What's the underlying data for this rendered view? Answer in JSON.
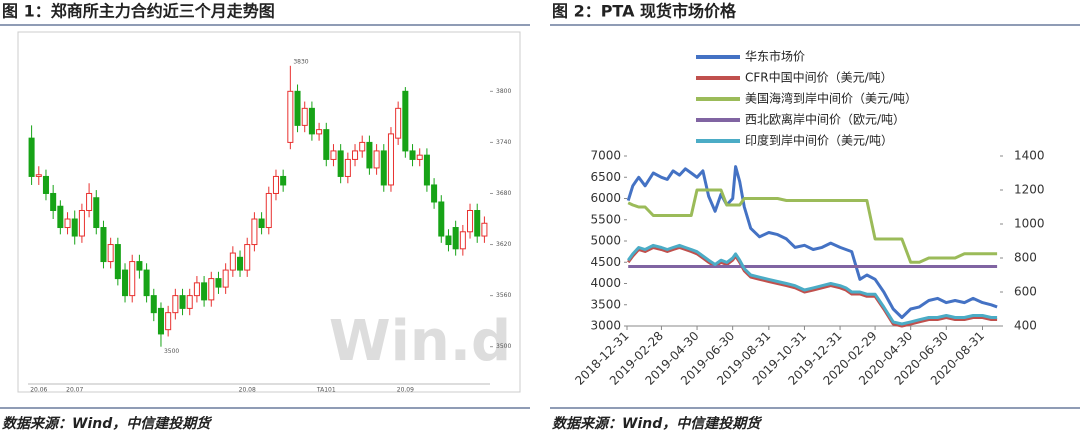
{
  "chart_data": [
    {
      "type": "candlestick",
      "title": "图 1：郑商所主力合约近三个月走势图",
      "source": "数据来源：Wind，中信建投期货",
      "watermark": "Win.d",
      "categories": [
        null,
        "20.06",
        null,
        null,
        null,
        null,
        "20.07",
        null,
        null,
        null,
        null,
        null,
        null,
        null,
        null,
        null,
        null,
        null,
        null,
        null,
        null,
        null,
        null,
        null,
        null,
        null,
        null,
        null,
        null,
        null,
        "20.08",
        null,
        null,
        null,
        null,
        null,
        null,
        null,
        null,
        null,
        null,
        "TA101",
        null,
        null,
        null,
        null,
        null,
        null,
        null,
        null,
        null,
        null,
        "20.09",
        null,
        null,
        null,
        null,
        null,
        null,
        null,
        null,
        null,
        null,
        null
      ],
      "open": [
        3745,
        3700,
        3700,
        3680,
        3665,
        3640,
        3650,
        3630,
        3660,
        3675,
        3640,
        3600,
        3620,
        3590,
        3560,
        3600,
        3590,
        3560,
        3545,
        3520,
        3540,
        3560,
        3545,
        3560,
        3575,
        3555,
        3580,
        3570,
        3590,
        3605,
        3590,
        3620,
        3650,
        3640,
        3680,
        3700,
        3740,
        3800,
        3760,
        3780,
        3750,
        3755,
        3720,
        3730,
        3700,
        3720,
        3730,
        3740,
        3710,
        3730,
        3690,
        3745,
        3800,
        3730,
        3720,
        3725,
        3690,
        3670,
        3630,
        3640,
        3615,
        3635,
        3660,
        3630
      ],
      "high": [
        3760,
        3712,
        3708,
        3690,
        3672,
        3658,
        3660,
        3668,
        3692,
        3684,
        3648,
        3628,
        3628,
        3598,
        3608,
        3608,
        3598,
        3568,
        3552,
        3548,
        3568,
        3568,
        3568,
        3583,
        3583,
        3588,
        3588,
        3598,
        3618,
        3613,
        3628,
        3658,
        3658,
        3688,
        3708,
        3708,
        3830,
        3808,
        3788,
        3788,
        3763,
        3763,
        3738,
        3738,
        3728,
        3738,
        3748,
        3748,
        3738,
        3738,
        3758,
        3788,
        3805,
        3738,
        3733,
        3733,
        3698,
        3678,
        3638,
        3648,
        3643,
        3668,
        3668,
        3653
      ],
      "low": [
        3690,
        3690,
        3672,
        3650,
        3632,
        3632,
        3620,
        3622,
        3652,
        3632,
        3592,
        3592,
        3572,
        3552,
        3552,
        3580,
        3552,
        3530,
        3500,
        3512,
        3532,
        3537,
        3537,
        3552,
        3547,
        3547,
        3562,
        3562,
        3582,
        3582,
        3582,
        3612,
        3632,
        3632,
        3672,
        3682,
        3732,
        3752,
        3752,
        3742,
        3742,
        3712,
        3712,
        3692,
        3692,
        3712,
        3722,
        3702,
        3702,
        3682,
        3682,
        3737,
        3722,
        3712,
        3712,
        3682,
        3662,
        3622,
        3612,
        3607,
        3607,
        3627,
        3622,
        3622
      ],
      "close": [
        3700,
        3702,
        3680,
        3660,
        3640,
        3650,
        3630,
        3660,
        3680,
        3640,
        3600,
        3620,
        3580,
        3560,
        3600,
        3590,
        3560,
        3540,
        3515,
        3540,
        3560,
        3545,
        3560,
        3575,
        3555,
        3580,
        3570,
        3590,
        3610,
        3590,
        3620,
        3650,
        3640,
        3680,
        3700,
        3690,
        3800,
        3760,
        3780,
        3750,
        3755,
        3720,
        3730,
        3700,
        3720,
        3730,
        3740,
        3710,
        3730,
        3690,
        3750,
        3780,
        3730,
        3720,
        3725,
        3690,
        3670,
        3630,
        3620,
        3615,
        3635,
        3660,
        3630,
        3645
      ],
      "up_color": "#e8312f",
      "down_color": "#17a317",
      "ylim": [
        3455,
        3865
      ],
      "yticks": [
        3500,
        3560,
        3620,
        3680,
        3740,
        3800
      ],
      "annotations": [
        3830,
        3500
      ]
    },
    {
      "type": "line",
      "title": "图 2：PTA 现货市场价格",
      "source": "数据来源：Wind，中信建投期货",
      "x": [
        "2019-01-02",
        "2019-01-10",
        "2019-01-20",
        "2019-01-31",
        "2019-02-14",
        "2019-02-28",
        "2019-03-10",
        "2019-03-20",
        "2019-03-31",
        "2019-04-10",
        "2019-04-20",
        "2019-04-30",
        "2019-05-10",
        "2019-05-20",
        "2019-05-31",
        "2019-06-10",
        "2019-06-20",
        "2019-06-30",
        "2019-07-05",
        "2019-07-12",
        "2019-07-20",
        "2019-07-31",
        "2019-08-15",
        "2019-08-31",
        "2019-09-15",
        "2019-09-30",
        "2019-10-15",
        "2019-10-31",
        "2019-11-15",
        "2019-11-30",
        "2019-12-15",
        "2019-12-31",
        "2020-01-10",
        "2020-01-20",
        "2020-02-03",
        "2020-02-15",
        "2020-02-29",
        "2020-03-15",
        "2020-03-31",
        "2020-04-15",
        "2020-04-30",
        "2020-05-15",
        "2020-05-31",
        "2020-06-15",
        "2020-06-30",
        "2020-07-15",
        "2020-07-31",
        "2020-08-15",
        "2020-08-31",
        "2020-09-15",
        "2020-09-25"
      ],
      "series": [
        {
          "name": "华东市场价",
          "color": "#4472c4",
          "values": [
            5950,
            6300,
            6500,
            6300,
            6600,
            6500,
            6450,
            6650,
            6550,
            6700,
            6600,
            6500,
            6650,
            6050,
            5700,
            6100,
            5850,
            6000,
            6750,
            6400,
            5800,
            5300,
            5100,
            5200,
            5150,
            5050,
            4850,
            4900,
            4800,
            4850,
            4950,
            4850,
            4800,
            4750,
            4100,
            4200,
            4100,
            3800,
            3400,
            3200,
            3400,
            3450,
            3600,
            3650,
            3550,
            3600,
            3550,
            3650,
            3550,
            3500,
            3450
          ]
        },
        {
          "name": "CFR中国中间价（美元/吨）",
          "color": "#c0504d",
          "axis": "y2",
          "values": [
            775,
            812,
            850,
            838,
            862,
            850,
            838,
            850,
            862,
            850,
            838,
            825,
            800,
            775,
            750,
            775,
            762,
            788,
            812,
            775,
            725,
            688,
            675,
            662,
            650,
            638,
            625,
            600,
            612,
            625,
            638,
            625,
            612,
            588,
            588,
            575,
            575,
            500,
            412,
            400,
            412,
            425,
            438,
            438,
            450,
            438,
            438,
            450,
            450,
            438,
            438
          ]
        },
        {
          "name": "美国海湾到岸中间价（美元/吨）",
          "color": "#9bbb59",
          "axis": "y2",
          "values": [
            1125,
            1112,
            1100,
            1100,
            1050,
            1050,
            1050,
            1050,
            1050,
            1050,
            1050,
            1200,
            1200,
            1200,
            1200,
            1200,
            1112,
            1112,
            1112,
            1112,
            1150,
            1150,
            1150,
            1150,
            1150,
            1138,
            1138,
            1138,
            1138,
            1138,
            1138,
            1138,
            1138,
            1138,
            1138,
            1138,
            912,
            912,
            912,
            912,
            775,
            775,
            800,
            800,
            800,
            800,
            825,
            825,
            825,
            825,
            825
          ]
        },
        {
          "name": "西北欧离岸中间价（欧元/吨）",
          "color": "#8064a2",
          "axis": "y2",
          "values": [
            750,
            750,
            750,
            750,
            750,
            750,
            750,
            750,
            750,
            750,
            750,
            750,
            750,
            750,
            750,
            750,
            750,
            750,
            750,
            750,
            750,
            750,
            750,
            750,
            750,
            750,
            750,
            750,
            750,
            750,
            750,
            750,
            750,
            750,
            750,
            750,
            750,
            750,
            750,
            750,
            750,
            750,
            750,
            750,
            750,
            750,
            750,
            750,
            750,
            750,
            750
          ]
        },
        {
          "name": "印度到岸中间价（美元/吨）",
          "color": "#4bacc6",
          "axis": "y2",
          "values": [
            787,
            824,
            862,
            850,
            874,
            862,
            850,
            862,
            874,
            862,
            850,
            837,
            812,
            787,
            762,
            787,
            774,
            800,
            824,
            787,
            737,
            700,
            687,
            674,
            662,
            650,
            637,
            612,
            624,
            637,
            650,
            637,
            624,
            600,
            600,
            587,
            587,
            512,
            424,
            412,
            424,
            437,
            450,
            450,
            462,
            450,
            450,
            462,
            462,
            450,
            450
          ]
        }
      ],
      "xlim": [
        "2018-12-31",
        "2020-09-30"
      ],
      "xticks": [
        "2018-12-31",
        "2019-02-28",
        "2019-04-30",
        "2019-06-30",
        "2019-08-31",
        "2019-10-31",
        "2019-12-31",
        "2020-02-29",
        "2020-04-30",
        "2020-06-30",
        "2020-08-31"
      ],
      "ylim": [
        3000,
        7000
      ],
      "yticks": [
        3000,
        3500,
        4000,
        4500,
        5000,
        5500,
        6000,
        6500,
        7000
      ],
      "y2lim": [
        400,
        1400
      ],
      "y2ticks": [
        400,
        600,
        800,
        1000,
        1200,
        1400
      ]
    }
  ]
}
